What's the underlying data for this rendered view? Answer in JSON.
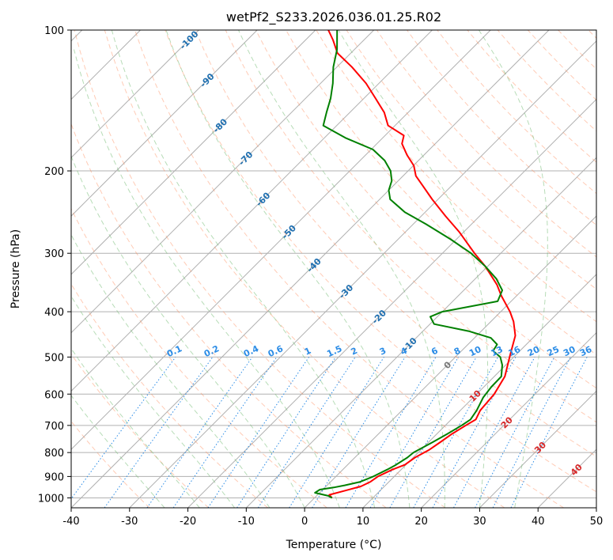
{
  "chart_data": {
    "type": "line",
    "title": "wetPf2_S233.2026.036.01.25.R02",
    "xlabel": "Temperature (°C)",
    "ylabel": "Pressure (hPa)",
    "xlim": [
      -40,
      50
    ],
    "ylim": [
      1050,
      100
    ],
    "x_ticks": [
      -40,
      -30,
      -20,
      -10,
      0,
      10,
      20,
      30,
      40,
      50
    ],
    "y_ticks": [
      100,
      200,
      300,
      400,
      500,
      600,
      700,
      800,
      900,
      1000
    ],
    "skew_deg": 45,
    "grid": true,
    "series": [
      {
        "name": "Temperature",
        "color": "#ff0000",
        "points": [
          {
            "p": 1000,
            "t": 3.0
          },
          {
            "p": 985,
            "t": 2.0
          },
          {
            "p": 965,
            "t": 4.0
          },
          {
            "p": 945,
            "t": 6.0
          },
          {
            "p": 925,
            "t": 6.8
          },
          {
            "p": 900,
            "t": 7.2
          },
          {
            "p": 870,
            "t": 8.5
          },
          {
            "p": 850,
            "t": 9.8
          },
          {
            "p": 820,
            "t": 10.3
          },
          {
            "p": 790,
            "t": 11.4
          },
          {
            "p": 760,
            "t": 12.0
          },
          {
            "p": 730,
            "t": 12.6
          },
          {
            "p": 700,
            "t": 13.5
          },
          {
            "p": 680,
            "t": 14.2
          },
          {
            "p": 650,
            "t": 13.4
          },
          {
            "p": 600,
            "t": 13.0
          },
          {
            "p": 550,
            "t": 11.8
          },
          {
            "p": 500,
            "t": 9.3
          },
          {
            "p": 450,
            "t": 6.6
          },
          {
            "p": 420,
            "t": 3.9
          },
          {
            "p": 400,
            "t": 1.6
          },
          {
            "p": 370,
            "t": -2.6
          },
          {
            "p": 350,
            "t": -5.3
          },
          {
            "p": 320,
            "t": -10.4
          },
          {
            "p": 300,
            "t": -14.5
          },
          {
            "p": 270,
            "t": -20.8
          },
          {
            "p": 250,
            "t": -25.8
          },
          {
            "p": 230,
            "t": -31.0
          },
          {
            "p": 215,
            "t": -35.0
          },
          {
            "p": 205,
            "t": -37.8
          },
          {
            "p": 195,
            "t": -39.9
          },
          {
            "p": 185,
            "t": -42.9
          },
          {
            "p": 175,
            "t": -45.7
          },
          {
            "p": 168,
            "t": -46.8
          },
          {
            "p": 160,
            "t": -51.2
          },
          {
            "p": 150,
            "t": -54.1
          },
          {
            "p": 140,
            "t": -58.0
          },
          {
            "p": 130,
            "t": -62.2
          },
          {
            "p": 120,
            "t": -67.4
          },
          {
            "p": 112,
            "t": -72.3
          },
          {
            "p": 105,
            "t": -75.3
          },
          {
            "p": 100,
            "t": -77.8
          }
        ]
      },
      {
        "name": "Dewpoint",
        "color": "#008000",
        "points": [
          {
            "p": 1000,
            "t": 3.0
          },
          {
            "p": 990,
            "t": 2.0
          },
          {
            "p": 975,
            "t": -0.8
          },
          {
            "p": 960,
            "t": -0.5
          },
          {
            "p": 950,
            "t": 1.5
          },
          {
            "p": 940,
            "t": 3.0
          },
          {
            "p": 925,
            "t": 5.0
          },
          {
            "p": 900,
            "t": 6.4
          },
          {
            "p": 870,
            "t": 7.6
          },
          {
            "p": 850,
            "t": 8.3
          },
          {
            "p": 820,
            "t": 9.0
          },
          {
            "p": 800,
            "t": 9.2
          },
          {
            "p": 760,
            "t": 10.7
          },
          {
            "p": 730,
            "t": 11.8
          },
          {
            "p": 700,
            "t": 12.8
          },
          {
            "p": 680,
            "t": 13.3
          },
          {
            "p": 650,
            "t": 12.8
          },
          {
            "p": 610,
            "t": 11.7
          },
          {
            "p": 580,
            "t": 11.3
          },
          {
            "p": 550,
            "t": 11.2
          },
          {
            "p": 520,
            "t": 9.4
          },
          {
            "p": 500,
            "t": 7.7
          },
          {
            "p": 485,
            "t": 5.4
          },
          {
            "p": 470,
            "t": 5.0
          },
          {
            "p": 455,
            "t": 2.8
          },
          {
            "p": 440,
            "t": -2.2
          },
          {
            "p": 425,
            "t": -9.3
          },
          {
            "p": 410,
            "t": -11.2
          },
          {
            "p": 400,
            "t": -10.0
          },
          {
            "p": 380,
            "t": -2.3
          },
          {
            "p": 360,
            "t": -3.4
          },
          {
            "p": 340,
            "t": -6.4
          },
          {
            "p": 320,
            "t": -10.4
          },
          {
            "p": 300,
            "t": -15.1
          },
          {
            "p": 280,
            "t": -21.0
          },
          {
            "p": 260,
            "t": -27.8
          },
          {
            "p": 245,
            "t": -33.5
          },
          {
            "p": 230,
            "t": -38.2
          },
          {
            "p": 220,
            "t": -40.0
          },
          {
            "p": 210,
            "t": -41.1
          },
          {
            "p": 200,
            "t": -43.0
          },
          {
            "p": 190,
            "t": -45.8
          },
          {
            "p": 180,
            "t": -49.7
          },
          {
            "p": 170,
            "t": -56.4
          },
          {
            "p": 160,
            "t": -62.3
          },
          {
            "p": 150,
            "t": -64.0
          },
          {
            "p": 140,
            "t": -65.7
          },
          {
            "p": 130,
            "t": -67.9
          },
          {
            "p": 120,
            "t": -70.6
          },
          {
            "p": 110,
            "t": -73.0
          },
          {
            "p": 100,
            "t": -76.3
          }
        ]
      }
    ],
    "dry_adiabats": {
      "color": "#ff8c5a",
      "theta_c": [
        -30,
        -20,
        -10,
        0,
        10,
        20,
        30,
        40,
        50,
        60,
        70,
        80,
        90,
        100,
        110,
        120,
        130,
        140,
        150,
        160,
        170,
        180,
        190,
        200
      ]
    },
    "moist_adiabats": {
      "color": "#7cc07c",
      "start_t_c": [
        -24,
        -18,
        -12,
        -6,
        0,
        6,
        12,
        18,
        24,
        30,
        36
      ]
    },
    "mixing_ratio": {
      "color": "#2b8ce6",
      "label_pressure": 500,
      "labels": [
        "0.1",
        "0.2",
        "0.4",
        "0.6",
        "1",
        "1.5",
        "2",
        "3",
        "4",
        "6",
        "8",
        "10",
        "13",
        "16",
        "20",
        "25",
        "30",
        "36"
      ],
      "values": [
        0.1,
        0.2,
        0.4,
        0.6,
        1,
        1.5,
        2,
        3,
        4,
        6,
        8,
        10,
        13,
        16,
        20,
        25,
        30,
        36
      ]
    },
    "isotherm_labels": {
      "color": "#1f6fb0",
      "values": [
        "-100",
        "-90",
        "-80",
        "-70",
        "-60",
        "-50",
        "-40",
        "-30",
        "-20",
        "-10"
      ],
      "pressures": [
        105,
        128,
        160,
        188,
        230,
        270,
        318,
        362,
        410,
        470
      ]
    },
    "warm_isotherm_labels": {
      "color": "#d62728",
      "values": [
        "0",
        "10",
        "20",
        "30",
        "40"
      ],
      "pressures": [
        520,
        605,
        690,
        780,
        870
      ],
      "zero_color": "#777777"
    }
  }
}
